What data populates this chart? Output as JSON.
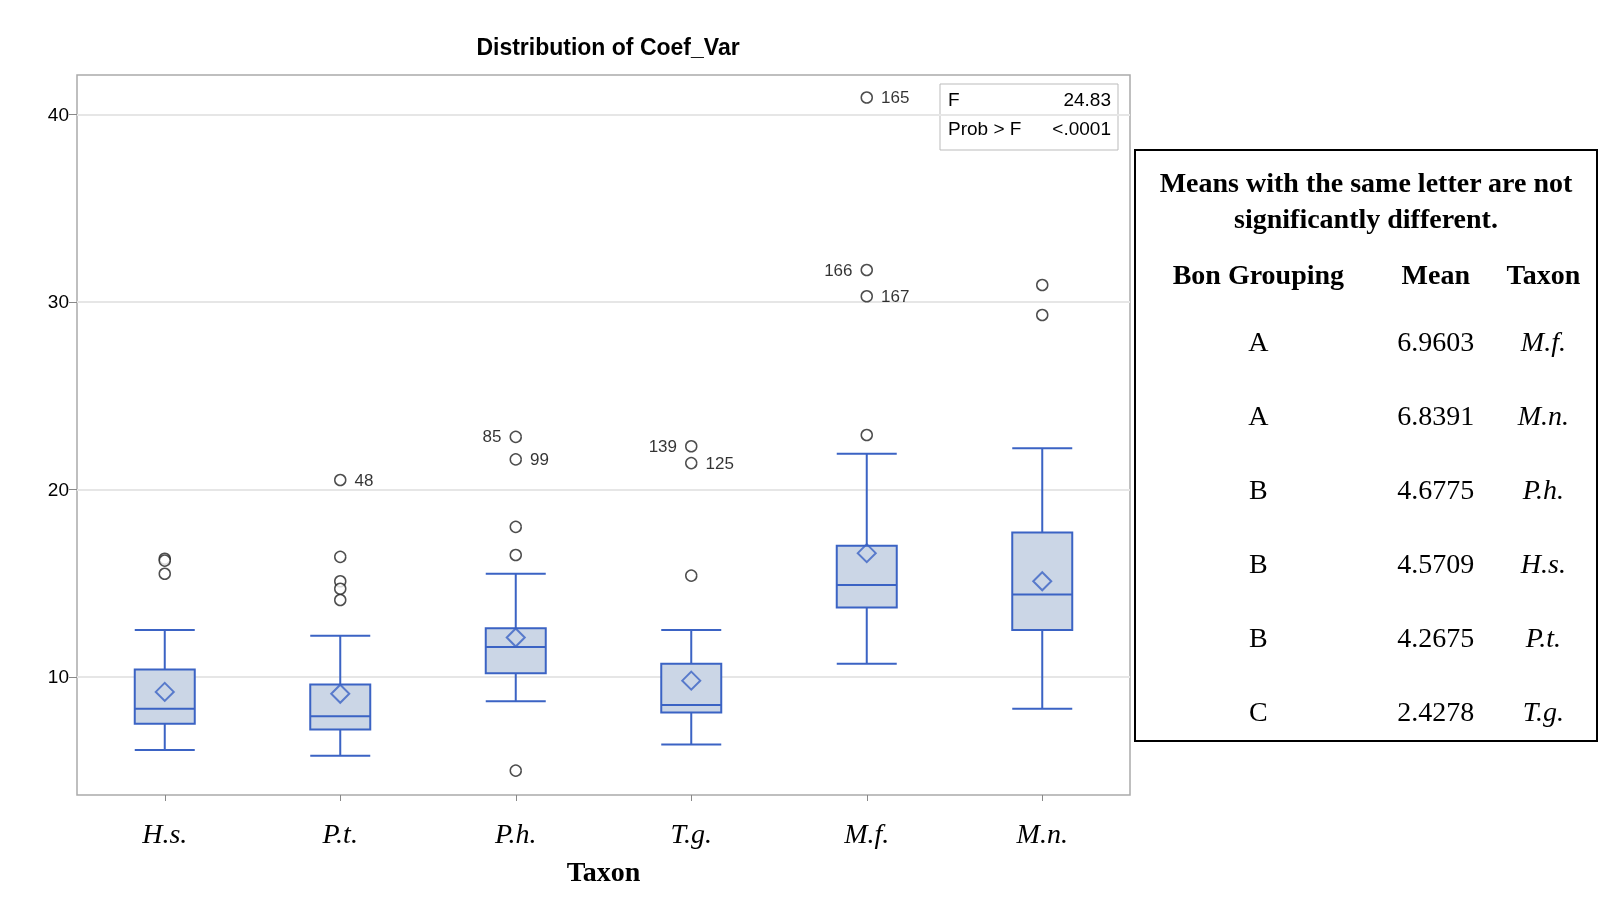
{
  "chart_data": [
    {
      "type": "box",
      "title": "Distribution of Coef_Var",
      "xlabel": "Taxon",
      "categories": [
        "H.s.",
        "P.t.",
        "P.h.",
        "T.g.",
        "M.f.",
        "M.n."
      ],
      "series": [
        {
          "color": "#cbd6e6",
          "boxes": [
            {
              "low": 6.1,
              "q1": 7.5,
              "median": 8.3,
              "q3": 10.4,
              "high": 12.5,
              "mean": 9.2
            },
            {
              "low": 5.8,
              "q1": 7.2,
              "median": 7.9,
              "q3": 9.6,
              "high": 12.2,
              "mean": 9.1
            },
            {
              "low": 8.7,
              "q1": 10.2,
              "median": 11.6,
              "q3": 12.6,
              "high": 15.5,
              "mean": 12.1
            },
            {
              "low": 6.4,
              "q1": 8.1,
              "median": 8.5,
              "q3": 10.7,
              "high": 12.5,
              "mean": 9.8
            },
            {
              "low": 10.7,
              "q1": 13.7,
              "median": 14.9,
              "q3": 17.0,
              "high": 21.9,
              "mean": 16.6
            },
            {
              "low": 8.3,
              "q1": 12.5,
              "median": 14.4,
              "q3": 17.7,
              "high": 22.2,
              "mean": 15.1
            }
          ]
        },
        {
          "type": "scatter",
          "color": "#222222",
          "marker": "circle",
          "x": [
            "H.s.",
            "H.s.",
            "H.s.",
            "P.t.",
            "P.t.",
            "P.t.",
            "P.t.",
            "P.t.",
            "P.h.",
            "P.h.",
            "P.h.",
            "P.h.",
            "P.h.",
            "T.g.",
            "T.g.",
            "T.g.",
            "M.f.",
            "M.f.",
            "M.f.",
            "M.f.",
            "M.n.",
            "M.n."
          ],
          "values": [
            16.3,
            16.2,
            15.5,
            20.5,
            16.4,
            15.1,
            14.7,
            14.1,
            22.8,
            21.6,
            18.0,
            16.5,
            5.0,
            22.3,
            21.4,
            15.4,
            40.9,
            31.7,
            30.3,
            22.9,
            30.9,
            29.3
          ]
        }
      ],
      "ylim": [
        3.7,
        42.1
      ],
      "yticks": [
        10,
        20,
        30,
        40
      ],
      "grid": "y",
      "annotations": [
        {
          "text": "48",
          "x": "P.t.",
          "y": 20.5
        },
        {
          "text": "85",
          "x": "P.h.",
          "y": 22.8
        },
        {
          "text": "99",
          "x": "P.h.",
          "y": 21.6
        },
        {
          "text": "139",
          "x": "T.g.",
          "y": 22.3
        },
        {
          "text": "125",
          "x": "T.g.",
          "y": 21.4
        },
        {
          "text": "165",
          "x": "M.f.",
          "y": 40.9
        },
        {
          "text": "166",
          "x": "M.f.",
          "y": 31.7
        },
        {
          "text": "167",
          "x": "M.f.",
          "y": 30.3
        },
        "F",
        "24.83",
        "Prob > F",
        "<.0001"
      ]
    },
    {
      "type": "other",
      "title": "Means with the same letter are not significantly different.",
      "annotations": [
        "Bon Grouping",
        "Mean",
        "Taxon",
        "A",
        "6.9603",
        "M.f.",
        "A",
        "6.8391",
        "M.n.",
        "B",
        "4.6775",
        "P.h.",
        "B",
        "4.5709",
        "H.s.",
        "B",
        "4.2675",
        "P.t.",
        "C",
        "2.4278",
        "T.g."
      ]
    }
  ]
}
